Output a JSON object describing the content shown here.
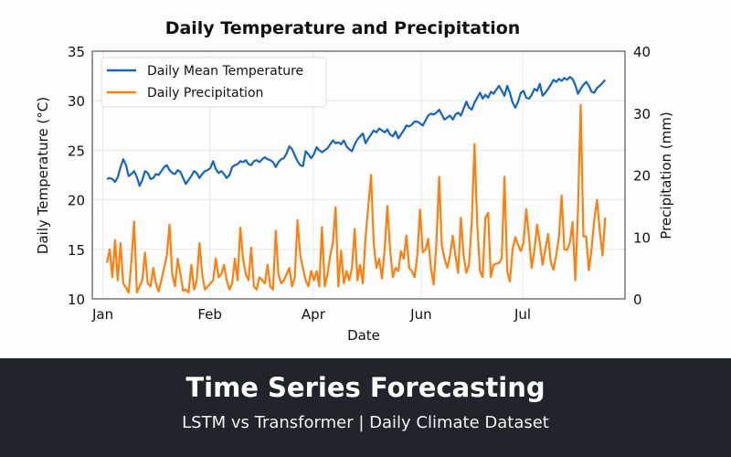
{
  "chart_data": {
    "type": "line",
    "title": "Daily Temperature and Precipitation",
    "xlabel": "Date",
    "ylabel_left": "Daily Temperature (°C)",
    "ylabel_right": "Precipitation (mm)",
    "x_ticks": [
      {
        "label": "Jan",
        "day": -1.5
      },
      {
        "label": "Feb",
        "day": 37.8
      },
      {
        "label": "Apr",
        "day": 75.8
      },
      {
        "label": "Jun",
        "day": 115.4
      },
      {
        "label": "Jul",
        "day": 152.7
      }
    ],
    "ylim_left": [
      10,
      35
    ],
    "yticks_left": [
      10,
      15,
      20,
      25,
      30,
      35
    ],
    "ylim_right": [
      0,
      40
    ],
    "yticks_right": [
      0,
      10,
      20,
      30,
      40
    ],
    "grid": true,
    "legend_position": "top-left",
    "series": [
      {
        "name": "Daily Mean Temperature",
        "axis": "left",
        "color": "#1565c0",
        "values": [
          22.1,
          22.2,
          22.1,
          21.8,
          22.3,
          23.3,
          24.1,
          23.5,
          22.4,
          22.6,
          22.9,
          22.3,
          21.4,
          22.0,
          22.9,
          22.7,
          22.1,
          22.2,
          22.6,
          22.5,
          22.9,
          23.3,
          23.5,
          23.0,
          22.7,
          22.6,
          23.0,
          22.8,
          22.2,
          21.6,
          22.0,
          22.4,
          22.9,
          22.7,
          22.2,
          22.6,
          22.9,
          23.0,
          23.2,
          23.9,
          23.1,
          22.7,
          22.9,
          22.6,
          22.2,
          22.5,
          23.3,
          23.5,
          23.6,
          23.9,
          23.8,
          24.0,
          23.6,
          23.5,
          23.9,
          24.0,
          23.8,
          24.1,
          24.3,
          24.1,
          24.0,
          23.8,
          23.3,
          23.8,
          24.1,
          24.2,
          24.7,
          25.4,
          25.1,
          24.5,
          23.9,
          23.5,
          23.4,
          24.9,
          24.6,
          24.2,
          24.6,
          25.3,
          25.0,
          24.8,
          25.0,
          25.2,
          25.6,
          26.0,
          25.7,
          25.8,
          25.6,
          26.0,
          25.4,
          25.1,
          24.9,
          25.6,
          26.1,
          26.4,
          26.7,
          25.7,
          26.2,
          26.6,
          27.0,
          26.8,
          27.2,
          27.0,
          26.8,
          27.1,
          26.6,
          26.4,
          26.9,
          26.2,
          26.6,
          27.0,
          27.5,
          27.4,
          27.6,
          27.9,
          27.9,
          27.7,
          27.5,
          28.0,
          28.5,
          28.7,
          28.6,
          28.8,
          29.1,
          28.6,
          28.1,
          28.3,
          28.5,
          28.1,
          28.6,
          28.8,
          28.5,
          29.2,
          29.9,
          29.3,
          29.1,
          29.8,
          30.3,
          30.8,
          30.2,
          30.6,
          30.3,
          30.9,
          30.7,
          31.1,
          31.5,
          31.0,
          30.5,
          31.5,
          30.8,
          29.8,
          29.3,
          29.9,
          30.8,
          31.0,
          30.3,
          30.2,
          30.6,
          31.2,
          31.0,
          31.7,
          30.5,
          30.8,
          31.2,
          31.6,
          32.1,
          31.9,
          32.2,
          32.0,
          32.3,
          32.1,
          32.4,
          32.2,
          31.6,
          30.7,
          31.2,
          31.6,
          31.9,
          31.5,
          30.9,
          30.8,
          31.3,
          31.5,
          31.8,
          32.1
        ]
      },
      {
        "name": "Daily Precipitation",
        "axis": "right",
        "color": "#ff7f0e",
        "values": [
          5.8,
          8,
          3.5,
          9.5,
          3,
          9,
          2.5,
          1.8,
          1,
          6,
          12.5,
          1,
          2,
          3,
          7.5,
          2.5,
          2,
          5,
          2.5,
          1.2,
          3,
          5,
          7,
          12,
          4,
          2,
          6.5,
          4,
          1.3,
          1.5,
          1,
          5.5,
          1.5,
          3,
          9,
          4,
          1.5,
          2,
          2.5,
          3,
          6.5,
          3.5,
          4,
          5.5,
          3,
          1.5,
          2.5,
          6.5,
          3,
          11.5,
          6.5,
          4,
          3,
          8.3,
          2,
          1.5,
          3.5,
          3,
          2.5,
          5.5,
          2,
          1.5,
          11,
          4,
          2.5,
          3,
          4,
          5,
          2,
          3.5,
          12.7,
          7,
          5,
          3,
          2,
          4.5,
          3,
          4.5,
          2,
          11.6,
          2,
          4,
          7,
          9,
          14.8,
          2,
          7.8,
          2.5,
          4.5,
          3,
          5,
          11.3,
          3,
          5.5,
          2.5,
          10,
          15,
          20,
          9,
          5,
          6.5,
          3.3,
          8,
          15,
          8,
          3.5,
          5,
          4.5,
          7.7,
          6.5,
          10.2,
          5,
          4.5,
          3.5,
          7,
          14.4,
          7.5,
          8,
          9.7,
          5,
          2.3,
          9,
          19.7,
          8.7,
          6.5,
          5,
          7,
          10.2,
          7,
          4.2,
          13.1,
          7,
          4.2,
          5.5,
          12.4,
          25,
          12,
          4.5,
          3.5,
          13.1,
          13.9,
          3.5,
          5.5,
          5.7,
          5.8,
          6.5,
          19.7,
          4.5,
          2.8,
          8,
          10,
          8.7,
          7.7,
          9,
          14.5,
          10,
          5,
          7.9,
          12,
          9,
          5.5,
          8,
          10.5,
          6,
          4.7,
          7,
          10,
          16.7,
          8,
          7.9,
          9,
          12.4,
          3,
          14,
          31.3,
          10.1,
          10.1,
          4.6,
          8,
          12.8,
          16,
          11,
          7,
          13.1
        ]
      }
    ]
  },
  "banner": {
    "title": "Time Series Forecasting",
    "subtitle": "LSTM vs Transformer | Daily Climate Dataset",
    "background": "#20252c"
  }
}
